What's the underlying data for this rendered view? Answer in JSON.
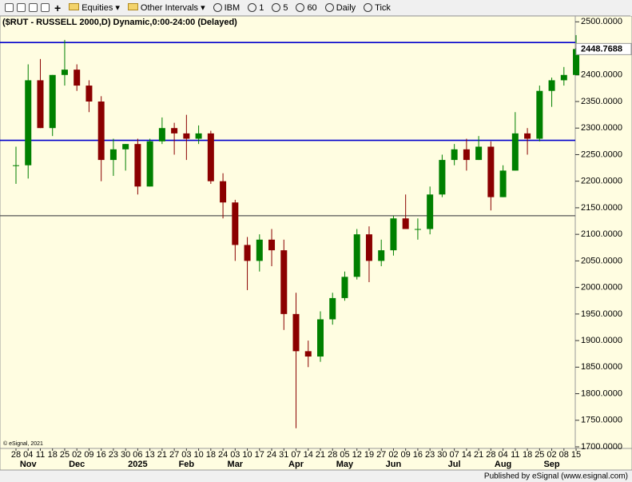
{
  "toolbar": {
    "items": [
      "Equities",
      "Other Intervals",
      "IBM",
      "1",
      "5",
      "60",
      "Daily",
      "Tick"
    ]
  },
  "chart_data": {
    "type": "candlestick",
    "title": "($RUT - RUSSELL 2000,D) Dynamic,0:00-24:00 (Delayed)",
    "categories": [
      "28",
      "04",
      "11",
      "18",
      "25",
      "02",
      "09",
      "16",
      "23",
      "30",
      "06",
      "13",
      "21",
      "27",
      "03",
      "10",
      "18",
      "24",
      "03",
      "10",
      "17",
      "24",
      "31",
      "07",
      "14",
      "21",
      "28",
      "05",
      "12",
      "19",
      "27",
      "02",
      "09",
      "16",
      "23",
      "30",
      "07",
      "14",
      "21",
      "28",
      "04",
      "11",
      "18",
      "25",
      "02",
      "08",
      "15"
    ],
    "month_labels": [
      null,
      "Nov",
      null,
      null,
      null,
      "Dec",
      null,
      null,
      null,
      null,
      "2025",
      null,
      null,
      null,
      "Feb",
      null,
      null,
      null,
      "Mar",
      null,
      null,
      null,
      null,
      "Apr",
      null,
      null,
      null,
      "May",
      null,
      null,
      null,
      "Jun",
      null,
      null,
      null,
      null,
      "Jul",
      null,
      null,
      null,
      "Aug",
      null,
      null,
      null,
      "Sep",
      null,
      null
    ],
    "open": [
      2230,
      2230,
      2390,
      2300,
      2400,
      2410,
      2380,
      2350,
      2240,
      2260,
      2270,
      2190,
      2275,
      2300,
      2290,
      2280,
      2290,
      2200,
      2160,
      2080,
      2050,
      2090,
      2070,
      1950,
      1880,
      1870,
      1940,
      1980,
      2020,
      2100,
      2050,
      2070,
      2130,
      2110,
      2110,
      2175,
      2240,
      2260,
      2240,
      2265,
      2170,
      2220,
      2290,
      2280,
      2370,
      2390,
      2400
    ],
    "high": [
      2265,
      2420,
      2430,
      2400,
      2466,
      2420,
      2390,
      2360,
      2280,
      2270,
      2280,
      2280,
      2320,
      2310,
      2325,
      2305,
      2295,
      2215,
      2165,
      2095,
      2100,
      2110,
      2090,
      1990,
      1900,
      1955,
      1990,
      2030,
      2110,
      2115,
      2090,
      2135,
      2175,
      2130,
      2190,
      2250,
      2270,
      2280,
      2285,
      2275,
      2230,
      2330,
      2300,
      2380,
      2395,
      2415,
      2475
    ],
    "low": [
      2195,
      2205,
      2300,
      2285,
      2380,
      2370,
      2330,
      2200,
      2210,
      2220,
      2175,
      2190,
      2270,
      2250,
      2240,
      2270,
      2195,
      2130,
      2050,
      1995,
      2030,
      2040,
      1920,
      1735,
      1850,
      1860,
      1930,
      1975,
      2015,
      2010,
      2040,
      2060,
      2110,
      2090,
      2100,
      2170,
      2230,
      2220,
      2240,
      2145,
      2170,
      2220,
      2250,
      2275,
      2340,
      2380,
      2400
    ],
    "close": [
      2230,
      2390,
      2300,
      2400,
      2410,
      2380,
      2350,
      2240,
      2260,
      2270,
      2190,
      2275,
      2300,
      2290,
      2280,
      2290,
      2200,
      2160,
      2080,
      2050,
      2090,
      2070,
      1950,
      1880,
      1870,
      1940,
      1980,
      2020,
      2100,
      2050,
      2070,
      2130,
      2110,
      2110,
      2175,
      2240,
      2260,
      2240,
      2265,
      2170,
      2220,
      2290,
      2280,
      2370,
      2390,
      2400,
      2448.7688
    ],
    "up_color": "#008000",
    "down_color": "#8b0000",
    "ylim": [
      1697,
      2511
    ],
    "yticks": [
      {
        "value": 1700,
        "label": "1700.0000"
      },
      {
        "value": 1750,
        "label": "1750.0000"
      },
      {
        "value": 1800,
        "label": "1800.0000"
      },
      {
        "value": 1850,
        "label": "1850.0000"
      },
      {
        "value": 1900,
        "label": "1900.0000"
      },
      {
        "value": 1950,
        "label": "1950.0000"
      },
      {
        "value": 2000,
        "label": "2000.0000"
      },
      {
        "value": 2050,
        "label": "2050.0000"
      },
      {
        "value": 2100,
        "label": "2100.0000"
      },
      {
        "value": 2150,
        "label": "2150.0000"
      },
      {
        "value": 2200,
        "label": "2200.0000"
      },
      {
        "value": 2250,
        "label": "2250.0000"
      },
      {
        "value": 2300,
        "label": "2300.0000"
      },
      {
        "value": 2350,
        "label": "2350.0000"
      },
      {
        "value": 2400,
        "label": "2400.0000"
      },
      {
        "value": 2450,
        "label": "2450.0000"
      },
      {
        "value": 2500,
        "label": "2500.0000"
      }
    ],
    "lines": [
      {
        "value": 2461,
        "color": "#0000cc"
      },
      {
        "value": 2277,
        "color": "#0000cc"
      },
      {
        "value": 2135,
        "color": "#555555"
      }
    ],
    "copyright": "© eSignal, 2021",
    "footer": "Published by eSignal (www.esignal.com)"
  }
}
